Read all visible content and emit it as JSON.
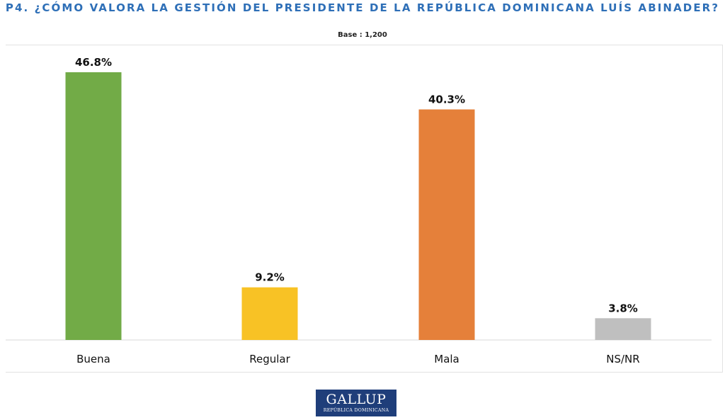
{
  "title": "P4. ¿CÓMO VALORA LA GESTIÓN DEL PRESIDENTE DE LA REPÚBLICA DOMINICANA LUÍS ABINADER?",
  "base": "Base : 1,200",
  "logo": {
    "name": "GALLUP",
    "sub": "REPÚBLICA DOMINICANA"
  },
  "colors": {
    "title": "#2e6fb7",
    "buena": "#72ab47",
    "regular": "#f8c225",
    "mala": "#e5803a",
    "nsnr": "#bfbfbf"
  },
  "chart_data": {
    "type": "bar",
    "title": "P4. ¿CÓMO VALORA LA GESTIÓN DEL PRESIDENTE DE LA REPÚBLICA DOMINICANA LUÍS ABINADER?",
    "categories": [
      "Buena",
      "Regular",
      "Mala",
      "NS/NR"
    ],
    "values": [
      46.8,
      9.2,
      40.3,
      3.8
    ],
    "labels": [
      "46.8%",
      "9.2%",
      "40.3%",
      "3.8%"
    ],
    "colors": [
      "#72ab47",
      "#f8c225",
      "#e5803a",
      "#bfbfbf"
    ],
    "xlabel": "",
    "ylabel": "",
    "ylim": [
      0,
      50
    ],
    "grid": false,
    "legend": "none"
  }
}
